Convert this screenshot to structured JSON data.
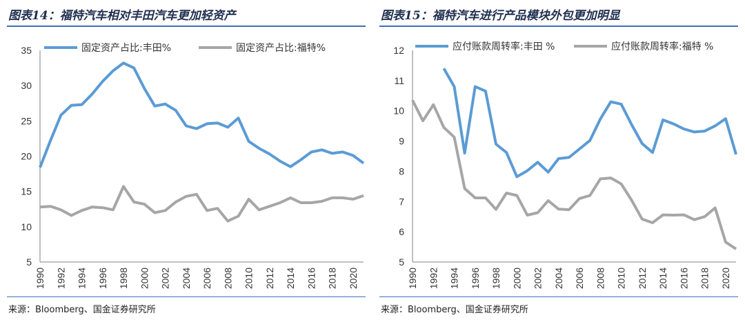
{
  "chart_data": [
    {
      "type": "line",
      "title": "图表14：福特汽车相对丰田汽车更加轻资产",
      "source": "来源：Bloomberg、国金证券研究所",
      "xlabel": "",
      "ylabel": "",
      "xlim": [
        1990,
        2021
      ],
      "ylim": [
        5,
        35
      ],
      "yticks": [
        "5",
        "10",
        "15",
        "20",
        "25",
        "30",
        "35"
      ],
      "xticks": [
        "1990",
        "1992",
        "1994",
        "1996",
        "1998",
        "2000",
        "2002",
        "2004",
        "2006",
        "2008",
        "2010",
        "2012",
        "2014",
        "2016",
        "2018",
        "2020"
      ],
      "x": [
        1990,
        1991,
        1992,
        1993,
        1994,
        1995,
        1996,
        1997,
        1998,
        1999,
        2000,
        2001,
        2002,
        2003,
        2004,
        2005,
        2006,
        2007,
        2008,
        2009,
        2010,
        2011,
        2012,
        2013,
        2014,
        2015,
        2016,
        2017,
        2018,
        2019,
        2020,
        2021
      ],
      "legend_position": "top",
      "series": [
        {
          "name": "固定资产占比:丰田%",
          "color": "#5b9bd5",
          "values": [
            18.4,
            22.2,
            25.8,
            27.2,
            27.3,
            28.8,
            30.6,
            32.1,
            33.2,
            32.5,
            29.6,
            27.1,
            27.4,
            26.5,
            24.3,
            23.9,
            24.6,
            24.7,
            24.1,
            25.4,
            22.1,
            21.1,
            20.3,
            19.3,
            18.5,
            19.5,
            20.6,
            20.9,
            20.4,
            20.6,
            20.1,
            19.0
          ]
        },
        {
          "name": "固定资产占比:福特%",
          "color": "#a6a6a6",
          "values": [
            12.8,
            12.9,
            12.4,
            11.6,
            12.3,
            12.8,
            12.7,
            12.4,
            15.7,
            13.5,
            13.2,
            12.0,
            12.3,
            13.5,
            14.3,
            14.6,
            12.3,
            12.6,
            10.8,
            11.5,
            13.9,
            12.4,
            12.9,
            13.4,
            14.1,
            13.4,
            13.4,
            13.6,
            14.1,
            14.1,
            13.9,
            14.4
          ]
        }
      ]
    },
    {
      "type": "line",
      "title": "图表15：福特汽车进行产品模块外包更加明显",
      "source": "来源：Bloomberg、国金证券研究所",
      "xlabel": "",
      "ylabel": "",
      "xlim": [
        1990,
        2021
      ],
      "ylim": [
        5,
        12
      ],
      "yticks": [
        "5",
        "6",
        "7",
        "8",
        "9",
        "10",
        "11",
        "12"
      ],
      "xticks": [
        "1990",
        "1992",
        "1994",
        "1996",
        "1998",
        "2000",
        "2002",
        "2004",
        "2006",
        "2008",
        "2010",
        "2012",
        "2014",
        "2016",
        "2018",
        "2020"
      ],
      "x": [
        1990,
        1991,
        1992,
        1993,
        1994,
        1995,
        1996,
        1997,
        1998,
        1999,
        2000,
        2001,
        2002,
        2003,
        2004,
        2005,
        2006,
        2007,
        2008,
        2009,
        2010,
        2011,
        2012,
        2013,
        2014,
        2015,
        2016,
        2017,
        2018,
        2019,
        2020,
        2021
      ],
      "legend_position": "top",
      "series": [
        {
          "name": "应付账款周转率:丰田 %",
          "color": "#5b9bd5",
          "values": [
            null,
            null,
            null,
            11.4,
            10.8,
            8.6,
            10.8,
            10.65,
            8.9,
            8.62,
            7.82,
            8.02,
            8.3,
            7.97,
            8.42,
            8.46,
            8.74,
            9.02,
            9.73,
            10.3,
            10.22,
            9.54,
            8.92,
            8.62,
            9.7,
            9.57,
            9.4,
            9.3,
            9.33,
            9.5,
            9.74,
            8.56
          ]
        },
        {
          "name": "应付账款周转率:福特 %",
          "color": "#a6a6a6",
          "values": [
            10.35,
            9.67,
            10.2,
            9.45,
            9.13,
            7.43,
            7.12,
            7.12,
            6.74,
            7.28,
            7.2,
            6.55,
            6.63,
            7.03,
            6.75,
            6.73,
            7.1,
            7.2,
            7.75,
            7.78,
            7.58,
            7.04,
            6.42,
            6.3,
            6.56,
            6.55,
            6.56,
            6.4,
            6.5,
            6.79,
            5.66,
            5.43
          ]
        }
      ]
    }
  ]
}
